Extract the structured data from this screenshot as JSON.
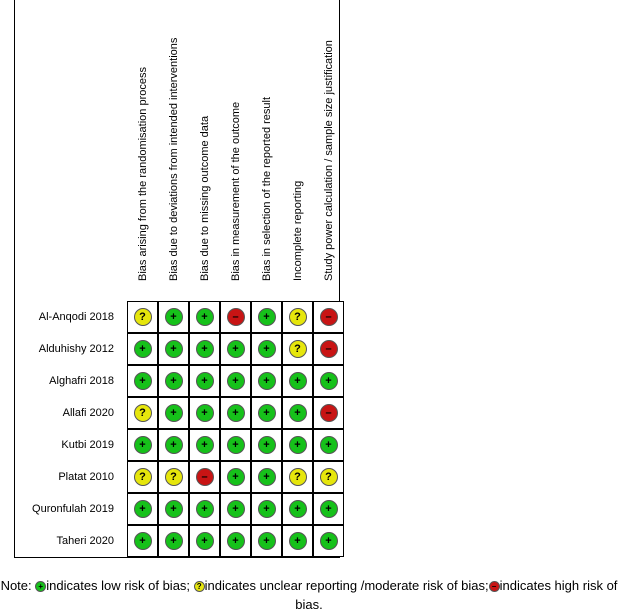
{
  "domains": [
    "Bias arising from the randomisation process",
    "Bias due to deviations from intended interventions",
    "Bias due to missing outcome data",
    "Bias in measurement of the outcome",
    "Bias in selection of the reported result",
    "Incomplete reporting",
    "Study power calculation / sample size justification"
  ],
  "studies": [
    {
      "name": "Al-Anqodi 2018",
      "ratings": [
        "unclear",
        "low",
        "low",
        "high",
        "low",
        "unclear",
        "high"
      ]
    },
    {
      "name": "Alduhishy 2012",
      "ratings": [
        "low",
        "low",
        "low",
        "low",
        "low",
        "unclear",
        "high"
      ]
    },
    {
      "name": "Alghafri 2018",
      "ratings": [
        "low",
        "low",
        "low",
        "low",
        "low",
        "low",
        "low"
      ]
    },
    {
      "name": "Allafi 2020",
      "ratings": [
        "unclear",
        "low",
        "low",
        "low",
        "low",
        "low",
        "high"
      ]
    },
    {
      "name": "Kutbi 2019",
      "ratings": [
        "low",
        "low",
        "low",
        "low",
        "low",
        "low",
        "low"
      ]
    },
    {
      "name": "Platat 2010",
      "ratings": [
        "unclear",
        "unclear",
        "high",
        "low",
        "low",
        "unclear",
        "unclear"
      ]
    },
    {
      "name": "Quronfulah 2019",
      "ratings": [
        "low",
        "low",
        "low",
        "low",
        "low",
        "low",
        "low"
      ]
    },
    {
      "name": "Taheri 2020",
      "ratings": [
        "low",
        "low",
        "low",
        "low",
        "low",
        "low",
        "low"
      ]
    }
  ],
  "symbols": {
    "low": "+",
    "unclear": "?",
    "high": "–"
  },
  "colors": {
    "low": "#16c11a",
    "unclear": "#e6e60c",
    "high": "#c81414"
  },
  "note": {
    "prefix": "Note: ",
    "low_text": "indicates low risk of bias; ",
    "unclear_text": "indicates unclear reporting /moderate risk of bias;",
    "high_text": "indicates high risk of bias."
  }
}
